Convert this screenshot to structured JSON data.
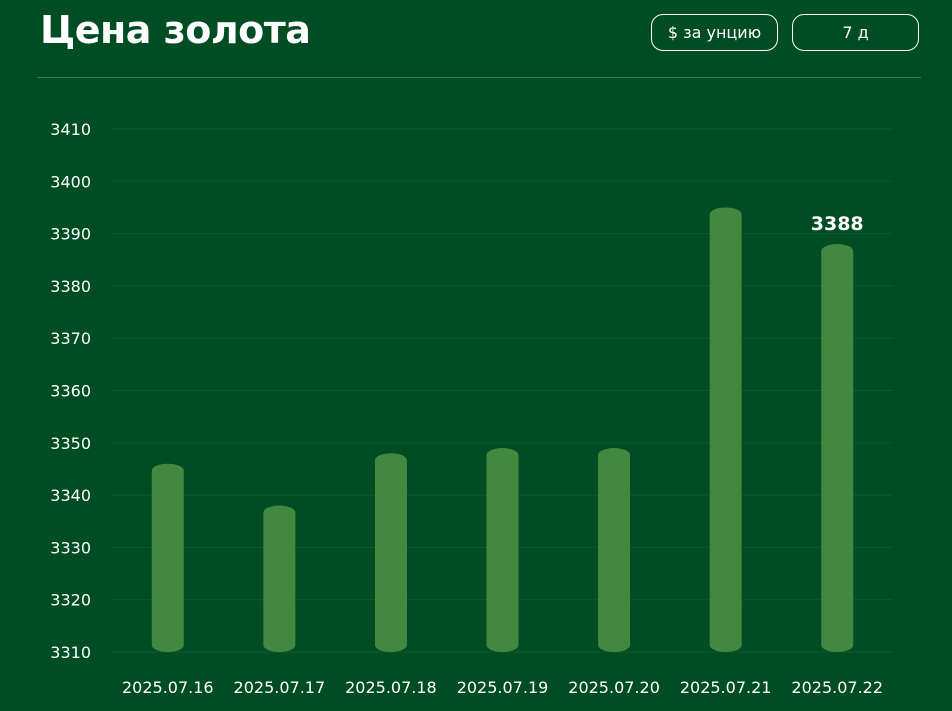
{
  "header": {
    "title": "Цена золота",
    "unit_button": "$ за унцию",
    "range_button": "7 д"
  },
  "colors": {
    "background": "#004c23",
    "bar": "#43883f",
    "grid": "#0f5a2c"
  },
  "chart_data": {
    "type": "bar",
    "categories": [
      "2025.07.16",
      "2025.07.17",
      "2025.07.18",
      "2025.07.19",
      "2025.07.20",
      "2025.07.21",
      "2025.07.22"
    ],
    "values": [
      3346,
      3338,
      3348,
      3349,
      3349,
      3395,
      3388
    ],
    "ylim": [
      3310,
      3410
    ],
    "yticks": [
      3310,
      3320,
      3330,
      3340,
      3350,
      3360,
      3370,
      3380,
      3390,
      3400,
      3410
    ],
    "grid": true,
    "data_labels": [
      {
        "category": "2025.07.22",
        "text": "3388"
      }
    ]
  }
}
